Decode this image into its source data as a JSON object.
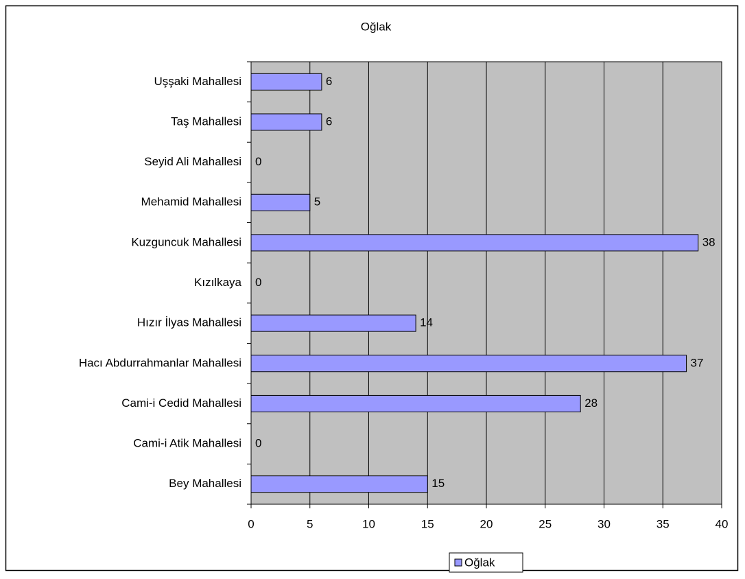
{
  "chart_data": {
    "type": "bar",
    "orientation": "horizontal",
    "title": "Oğlak",
    "categories": [
      "Uşşaki Mahallesi",
      "Taş Mahallesi",
      "Seyid Ali Mahallesi",
      "Mehamid Mahallesi",
      "Kuzguncuk Mahallesi",
      "Kızılkaya",
      "Hızır İlyas Mahallesi",
      "Hacı Abdurrahmanlar Mahallesi",
      "Cami-i Cedid Mahallesi",
      "Cami-i Atik Mahallesi",
      "Bey Mahallesi"
    ],
    "series": [
      {
        "name": "Oğlak",
        "color": "#9999ff",
        "values": [
          6,
          6,
          0,
          5,
          38,
          0,
          14,
          37,
          28,
          0,
          15
        ]
      }
    ],
    "xlim": [
      0,
      40
    ],
    "xticks": [
      0,
      5,
      10,
      15,
      20,
      25,
      30,
      35,
      40
    ],
    "grid": true,
    "legend": "bottom"
  }
}
